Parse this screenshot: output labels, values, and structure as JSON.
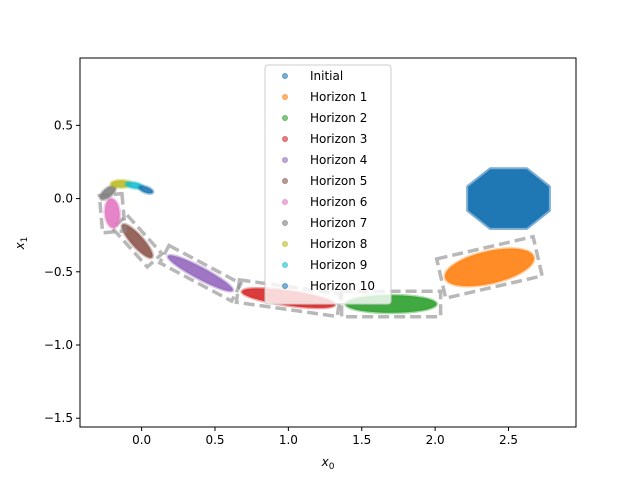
{
  "chart_data": {
    "type": "scatter",
    "title": "",
    "xlabel": "x",
    "xlabel_sub": "0",
    "ylabel": "x",
    "ylabel_sub": "1",
    "xlim": [
      -0.42,
      2.96
    ],
    "ylim": [
      -1.56,
      0.96
    ],
    "xticks": [
      0.0,
      0.5,
      1.0,
      1.5,
      2.0,
      2.5
    ],
    "xtick_labels": [
      "0.0",
      "0.5",
      "1.0",
      "1.5",
      "2.0",
      "2.5"
    ],
    "yticks": [
      0.5,
      0.0,
      -0.5,
      -1.0,
      -1.5
    ],
    "ytick_labels": [
      "0.5",
      "0.0",
      "−0.5",
      "−1.0",
      "−1.5"
    ],
    "grid": false,
    "legend_position": "top-center",
    "series": [
      {
        "name": "Initial",
        "color": "#1f77b4",
        "center": [
          2.5,
          0.0
        ],
        "width": 0.55,
        "height": 0.4,
        "angle": 0,
        "shape": "octagon",
        "box": false
      },
      {
        "name": "Horizon 1",
        "color": "#ff7f0e",
        "center": [
          2.37,
          -0.47
        ],
        "width": 0.62,
        "height": 0.22,
        "angle": 13,
        "box": true
      },
      {
        "name": "Horizon 2",
        "color": "#2ca02c",
        "center": [
          1.7,
          -0.72
        ],
        "width": 0.62,
        "height": 0.12,
        "angle": 0,
        "box": true
      },
      {
        "name": "Horizon 3",
        "color": "#d62728",
        "center": [
          1.0,
          -0.68
        ],
        "width": 0.64,
        "height": 0.1,
        "angle": -8,
        "box": true
      },
      {
        "name": "Horizon 4",
        "color": "#9467bd",
        "center": [
          0.4,
          -0.51
        ],
        "width": 0.5,
        "height": 0.08,
        "angle": -28,
        "box": true
      },
      {
        "name": "Horizon 5",
        "color": "#8c564b",
        "center": [
          -0.03,
          -0.29
        ],
        "width": 0.3,
        "height": 0.08,
        "angle": -48,
        "box": true
      },
      {
        "name": "Horizon 6",
        "color": "#e377c2",
        "center": [
          -0.2,
          -0.1
        ],
        "width": 0.2,
        "height": 0.1,
        "angle": -85,
        "box": true
      },
      {
        "name": "Horizon 7",
        "color": "#7f7f7f",
        "center": [
          -0.23,
          0.04
        ],
        "width": 0.13,
        "height": 0.06,
        "angle": 40,
        "box": false
      },
      {
        "name": "Horizon 8",
        "color": "#bcbd22",
        "center": [
          -0.14,
          0.1
        ],
        "width": 0.14,
        "height": 0.05,
        "angle": 0,
        "box": false
      },
      {
        "name": "Horizon 9",
        "color": "#17becf",
        "center": [
          -0.05,
          0.09
        ],
        "width": 0.12,
        "height": 0.04,
        "angle": -10,
        "box": false
      },
      {
        "name": "Horizon 10",
        "color": "#1f77b4",
        "center": [
          0.03,
          0.06
        ],
        "width": 0.1,
        "height": 0.04,
        "angle": -20,
        "box": false
      }
    ]
  }
}
